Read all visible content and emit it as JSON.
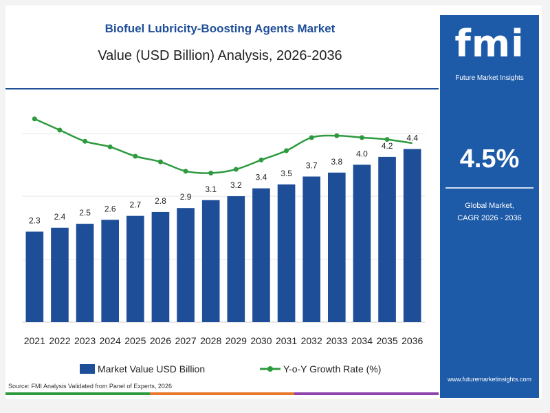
{
  "title": "Biofuel Lubricity-Boosting Agents Market",
  "subtitle": "Value (USD Billion) Analysis, 2026-2036",
  "chart_data": {
    "type": "bar",
    "categories": [
      "2021",
      "2022",
      "2023",
      "2024",
      "2025",
      "2026",
      "2027",
      "2028",
      "2029",
      "2030",
      "2031",
      "2032",
      "2033",
      "2034",
      "2035",
      "2036"
    ],
    "series": [
      {
        "name": "Market Value USD Billion",
        "type": "bar",
        "values": [
          2.3,
          2.4,
          2.5,
          2.6,
          2.7,
          2.8,
          2.9,
          3.1,
          3.2,
          3.4,
          3.5,
          3.7,
          3.8,
          4.0,
          4.2,
          4.4
        ],
        "color": "#1f4e99"
      },
      {
        "name": "Y-o-Y Growth Rate (%)",
        "type": "line",
        "values": [
          5.9,
          5.3,
          4.7,
          4.4,
          3.9,
          3.6,
          3.1,
          3.0,
          3.2,
          3.7,
          4.2,
          4.9,
          5.0,
          4.9,
          4.8,
          4.6
        ],
        "color": "#2d9a3e"
      }
    ],
    "data_labels": [
      "2.3",
      "2.4",
      "2.5",
      "2.6",
      "2.7",
      "2.8",
      "2.9",
      "3.1",
      "3.2",
      "3.4",
      "3.5",
      "3.7",
      "3.8",
      "4.0",
      "4.2",
      "4.4"
    ],
    "legend_position": "bottom",
    "grid": true
  },
  "sidebar": {
    "logo": "fmi",
    "logo_subtitle": "Future Market Insights",
    "cagr_value": "4.5%",
    "cagr_label_line1": "Global Market,",
    "cagr_label_line2": "CAGR 2026 - 2036",
    "website": "www.futuremarketinsights.com"
  },
  "legend": {
    "bar_label": "Market Value USD Billion",
    "line_label": "Y-o-Y Growth Rate (%)"
  },
  "source": "Source: FMI Analysis Validated from Panel of Experts, 2026",
  "colors": {
    "bar": "#1f4e99",
    "line": "#2d9a3e",
    "sidebar": "#1d5aa8",
    "bottom_bar": [
      "#2d9a3e",
      "#e8782a",
      "#8e44ad"
    ]
  }
}
